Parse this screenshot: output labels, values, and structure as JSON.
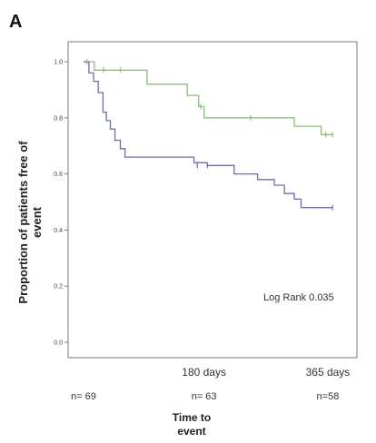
{
  "chart_data": {
    "type": "line",
    "panel_label": "A",
    "ylabel_lines": [
      "Proportion of patients free of",
      "event"
    ],
    "xlabel_lines": [
      "Time to",
      "event"
    ],
    "ylim": [
      0.0,
      1.0
    ],
    "xlim": [
      0,
      380
    ],
    "yticks": [
      {
        "value": 0.0,
        "label": "0.0"
      },
      {
        "value": 0.2,
        "label": "0.2"
      },
      {
        "value": 0.4,
        "label": "0.4"
      },
      {
        "value": 0.6,
        "label": "0.6"
      },
      {
        "value": 0.8,
        "label": "0.8"
      },
      {
        "value": 1.0,
        "label": "1.0"
      }
    ],
    "xticks": [
      {
        "value": 180,
        "label": "180 days"
      },
      {
        "value": 365,
        "label": "365 days"
      }
    ],
    "n_at_risk": [
      {
        "value": 0,
        "label": "n= 69"
      },
      {
        "value": 180,
        "label": "n= 63"
      },
      {
        "value": 365,
        "label": "n=58"
      }
    ],
    "annotation": "Log Rank 0.035",
    "grid": false,
    "series": [
      {
        "color": "#8dbd78",
        "steps": [
          [
            0,
            1.0
          ],
          [
            16,
            0.97
          ],
          [
            95,
            0.92
          ],
          [
            155,
            0.88
          ],
          [
            172,
            0.84
          ],
          [
            180,
            0.8
          ],
          [
            315,
            0.77
          ],
          [
            355,
            0.74
          ],
          [
            372,
            0.74
          ]
        ],
        "censored": [
          [
            5,
            1.0
          ],
          [
            30,
            0.97
          ],
          [
            55,
            0.97
          ],
          [
            175,
            0.84
          ],
          [
            250,
            0.8
          ],
          [
            362,
            0.74
          ],
          [
            372,
            0.74
          ]
        ]
      },
      {
        "color": "#6a6fb0",
        "steps": [
          [
            0,
            1.0
          ],
          [
            8,
            0.96
          ],
          [
            15,
            0.93
          ],
          [
            22,
            0.89
          ],
          [
            29,
            0.82
          ],
          [
            34,
            0.79
          ],
          [
            40,
            0.76
          ],
          [
            47,
            0.72
          ],
          [
            55,
            0.69
          ],
          [
            62,
            0.66
          ],
          [
            165,
            0.64
          ],
          [
            185,
            0.63
          ],
          [
            225,
            0.6
          ],
          [
            260,
            0.58
          ],
          [
            285,
            0.56
          ],
          [
            300,
            0.53
          ],
          [
            315,
            0.51
          ],
          [
            325,
            0.48
          ],
          [
            372,
            0.48
          ]
        ],
        "censored": [
          [
            170,
            0.63
          ],
          [
            185,
            0.63
          ],
          [
            372,
            0.48
          ]
        ]
      }
    ]
  }
}
